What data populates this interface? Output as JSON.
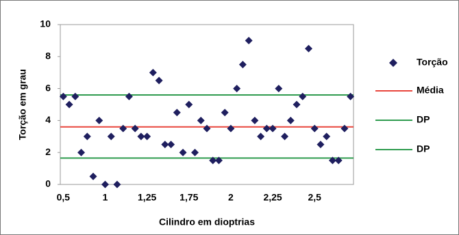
{
  "chart_data": {
    "type": "scatter",
    "x_label": "Cilindro em dioptrias",
    "y_label": "Torção em grau",
    "categories": [
      "0,5",
      null,
      null,
      null,
      null,
      null,
      null,
      "1",
      null,
      null,
      null,
      null,
      null,
      null,
      "1,25",
      null,
      null,
      null,
      null,
      null,
      null,
      "1,75",
      null,
      null,
      null,
      null,
      null,
      null,
      "2",
      null,
      null,
      null,
      null,
      null,
      null,
      "2,25",
      null,
      null,
      null,
      null,
      null,
      null,
      "2,5",
      null,
      null,
      null,
      null,
      null,
      null
    ],
    "series": [
      {
        "name": "Torção",
        "color": "#1f1f5f",
        "values": [
          5.5,
          5,
          5.5,
          2,
          3,
          0.5,
          4,
          0,
          3,
          0,
          3.5,
          5.5,
          3.5,
          3,
          3,
          7,
          6.5,
          2.5,
          2.5,
          4.5,
          2,
          5,
          2,
          4,
          3.5,
          1.5,
          1.5,
          4.5,
          3.5,
          6,
          7.5,
          9,
          4,
          3,
          3.5,
          3.5,
          6,
          3,
          4,
          5,
          5.5,
          8.5,
          3.5,
          2.5,
          3,
          1.5,
          1.5,
          3.5,
          5.5
        ]
      }
    ],
    "reference_lines": [
      {
        "name": "Média",
        "color": "#e8453c",
        "value": 3.6
      },
      {
        "name": "DP",
        "color": "#2e9b4e",
        "value": 5.6
      },
      {
        "name": "DP",
        "color": "#2e9b4e",
        "value": 1.65
      }
    ],
    "ylim": [
      0,
      10
    ],
    "yticks": [
      0,
      2,
      4,
      6,
      8,
      10
    ],
    "grid": false
  }
}
